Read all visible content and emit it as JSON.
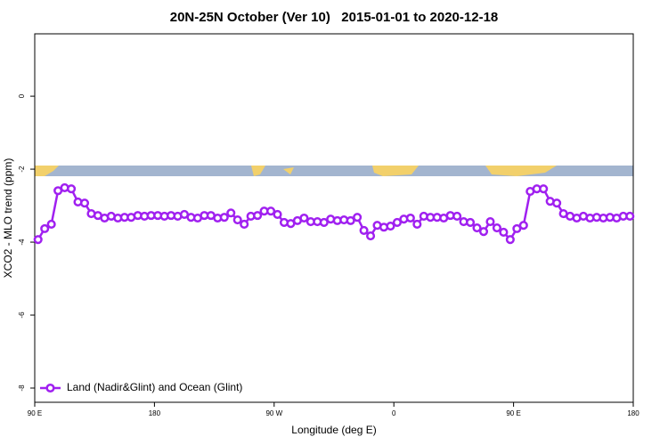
{
  "chart_data": {
    "type": "line",
    "title": "20N-25N October (Ver 10)   2015-01-01 to 2020-12-18",
    "x_label": "Longitude (deg E)",
    "y_label": "XCO2 - MLO trend (ppm)",
    "x": [
      92.5,
      97.5,
      102.5,
      107.5,
      112.5,
      117.5,
      122.5,
      127.5,
      132.5,
      137.5,
      142.5,
      147.5,
      152.5,
      157.5,
      162.5,
      167.5,
      172.5,
      177.5,
      182.5,
      187.5,
      192.5,
      197.5,
      202.5,
      207.5,
      212.5,
      217.5,
      222.5,
      227.5,
      232.5,
      237.5,
      242.5,
      247.5,
      252.5,
      257.5,
      262.5,
      267.5,
      272.5,
      277.5,
      282.5,
      287.5,
      292.5,
      297.5,
      302.5,
      307.5,
      312.5,
      317.5,
      322.5,
      327.5,
      332.5,
      337.5,
      342.5,
      347.5,
      352.5,
      357.5,
      362.5,
      367.5,
      372.5,
      377.5,
      382.5,
      387.5,
      392.5,
      397.5,
      402.5,
      407.5,
      412.5,
      417.5,
      422.5,
      427.5,
      432.5,
      437.5,
      442.5,
      447.5,
      452.5,
      457.5,
      462.5,
      467.5,
      472.5,
      477.5,
      482.5,
      487.5,
      492.5,
      497.5,
      502.5,
      507.5,
      512.5,
      517.5,
      522.5,
      527.5,
      532.5,
      537.5
    ],
    "series": [
      {
        "name": "Land (Nadir&Glint) and Ocean (Glint)",
        "color": "#a020f0",
        "values": [
          -3.93,
          -3.63,
          -3.51,
          -2.59,
          -2.51,
          -2.54,
          -2.9,
          -2.93,
          -3.22,
          -3.27,
          -3.34,
          -3.29,
          -3.34,
          -3.32,
          -3.32,
          -3.27,
          -3.29,
          -3.27,
          -3.27,
          -3.29,
          -3.27,
          -3.29,
          -3.24,
          -3.32,
          -3.34,
          -3.27,
          -3.27,
          -3.34,
          -3.32,
          -3.2,
          -3.39,
          -3.51,
          -3.29,
          -3.27,
          -3.15,
          -3.15,
          -3.24,
          -3.46,
          -3.49,
          -3.41,
          -3.34,
          -3.44,
          -3.44,
          -3.46,
          -3.37,
          -3.41,
          -3.39,
          -3.41,
          -3.32,
          -3.68,
          -3.83,
          -3.54,
          -3.59,
          -3.56,
          -3.46,
          -3.37,
          -3.34,
          -3.51,
          -3.29,
          -3.32,
          -3.32,
          -3.34,
          -3.27,
          -3.29,
          -3.44,
          -3.46,
          -3.61,
          -3.71,
          -3.44,
          -3.61,
          -3.73,
          -3.93,
          -3.63,
          -3.54,
          -2.61,
          -2.54,
          -2.54,
          -2.88,
          -2.93,
          -3.22,
          -3.29,
          -3.34,
          -3.29,
          -3.34,
          -3.32,
          -3.34,
          -3.32,
          -3.34,
          -3.29,
          -3.29
        ]
      }
    ],
    "xlim": [
      90,
      540
    ],
    "ylim": [
      -8.39,
      1.71
    ],
    "xticks": [
      {
        "value": 90,
        "label": "90 E"
      },
      180,
      {
        "value": 270,
        "label": "90 W"
      },
      {
        "value": 360,
        "label": "0"
      },
      {
        "value": 450,
        "label": "90 E"
      },
      {
        "value": 540,
        "label": "180"
      }
    ],
    "yticks": [
      -8,
      -6,
      -4,
      -2,
      0
    ],
    "legend": "bottom-left"
  }
}
